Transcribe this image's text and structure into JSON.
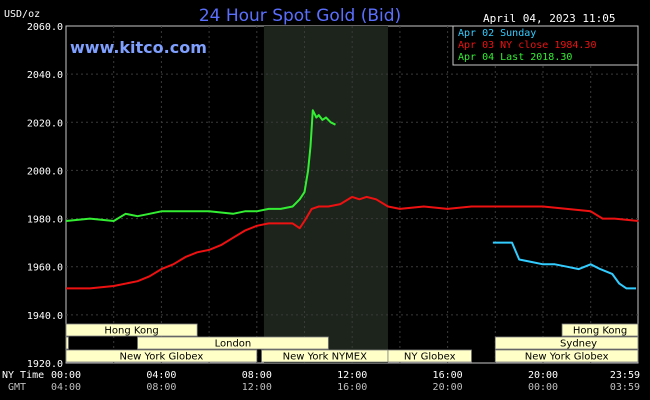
{
  "chart_data": {
    "type": "line",
    "title": "24 Hour Spot Gold (Bid)",
    "watermark": "www.kitco.com",
    "unit_label": "USD/oz",
    "date_label": "April 04, 2023 11:05",
    "ylim": [
      1920,
      2060
    ],
    "y_ticks": [
      "2060.0",
      "2040.0",
      "2020.0",
      "2000.0",
      "1980.0",
      "1960.0",
      "1940.0",
      "1920.0"
    ],
    "y_tick_values": [
      2060,
      2040,
      2020,
      2000,
      1980,
      1960,
      1940,
      1920
    ],
    "x_row_labels": [
      "NY Time",
      "GMT"
    ],
    "x_ticks_ny": [
      "00:00",
      "04:00",
      "08:00",
      "12:00",
      "16:00",
      "20:00",
      "23:59"
    ],
    "x_ticks_gmt": [
      "04:00",
      "08:00",
      "12:00",
      "16:00",
      "20:00",
      "00:00",
      "03:59"
    ],
    "x_tick_hours": [
      0,
      4,
      8,
      12,
      16,
      20,
      23.983
    ],
    "shaded_range_hours": [
      8.3,
      13.5
    ],
    "series": [
      {
        "name": "Apr 02 Sunday",
        "color": "#33ccff",
        "x": [
          17.9,
          18.3,
          18.7,
          19.0,
          19.5,
          20.0,
          20.5,
          21.0,
          21.5,
          22.0,
          22.4,
          22.9,
          23.2,
          23.5,
          23.9
        ],
        "y": [
          1970,
          1970,
          1970,
          1963,
          1962,
          1961,
          1961,
          1960,
          1959,
          1961,
          1959,
          1957,
          1953,
          1951,
          1951
        ]
      },
      {
        "name": "Apr 03 NY close 1984.30",
        "color": "#ee1111",
        "x": [
          0,
          1,
          2,
          3,
          3.5,
          4,
          4.5,
          5,
          5.5,
          6,
          6.5,
          7,
          7.5,
          8,
          8.5,
          9,
          9.5,
          9.8,
          10,
          10.3,
          10.6,
          11,
          11.5,
          12,
          12.3,
          12.6,
          13,
          13.5,
          14,
          15,
          16,
          17,
          18,
          19,
          20,
          21,
          22,
          22.5,
          23,
          24
        ],
        "y": [
          1951,
          1951,
          1952,
          1954,
          1956,
          1959,
          1961,
          1964,
          1966,
          1967,
          1969,
          1972,
          1975,
          1977,
          1978,
          1978,
          1978,
          1976,
          1979,
          1984,
          1985,
          1985,
          1986,
          1989,
          1988,
          1989,
          1988,
          1985,
          1984,
          1985,
          1984,
          1985,
          1985,
          1985,
          1985,
          1984,
          1983,
          1980,
          1980,
          1979
        ]
      },
      {
        "name": "Apr 04 Last 2018.30",
        "color": "#33ee33",
        "x": [
          0,
          1,
          2,
          2.5,
          3,
          3.5,
          4,
          5,
          6,
          7,
          7.5,
          8,
          8.5,
          9,
          9.5,
          9.8,
          10.0,
          10.15,
          10.25,
          10.35,
          10.5,
          10.6,
          10.75,
          10.9,
          11.1,
          11.3
        ],
        "y": [
          1979,
          1980,
          1979,
          1982,
          1981,
          1982,
          1983,
          1983,
          1983,
          1982,
          1983,
          1983,
          1984,
          1984,
          1985,
          1988,
          1991,
          2000,
          2010,
          2025,
          2022,
          2023,
          2021,
          2022,
          2020,
          2019
        ]
      }
    ],
    "market_sessions": [
      {
        "name": "Hong Kong",
        "row": 0,
        "ranges": [
          [
            0,
            5.5
          ],
          [
            20.8,
            23.983
          ]
        ],
        "label_range": [
          0,
          5.5
        ],
        "label_range2": [
          20.8,
          23.983
        ]
      },
      {
        "name": "London",
        "row": 1,
        "ranges": [
          [
            0,
            0.1
          ],
          [
            3.0,
            11.0
          ]
        ],
        "label_range": [
          3.0,
          11.0
        ]
      },
      {
        "name": "New York Globex",
        "row": 2,
        "ranges": [
          [
            0,
            8.0
          ],
          [
            18.0,
            23.983
          ]
        ],
        "label_range": [
          0,
          8.0
        ],
        "label_range2": [
          18.0,
          23.983
        ]
      },
      {
        "name": "New York NYMEX",
        "row": 2,
        "ranges": [
          [
            8.2,
            13.5
          ]
        ],
        "label_range": [
          8.2,
          13.5
        ]
      },
      {
        "name": "NY Globex",
        "row": 2,
        "ranges": [
          [
            13.5,
            17.0
          ]
        ],
        "label_range": [
          13.5,
          17.0
        ]
      },
      {
        "name": "Sydney",
        "row": 1,
        "ranges": [
          [
            18.0,
            23.983
          ]
        ],
        "label_range": [
          19.0,
          23.983
        ]
      }
    ]
  }
}
